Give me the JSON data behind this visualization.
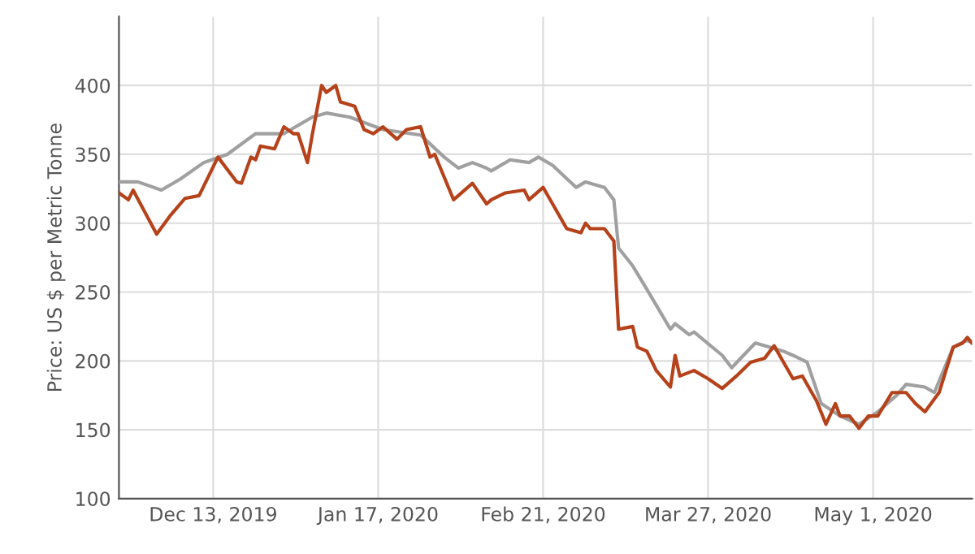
{
  "chart_data": {
    "type": "line",
    "ylabel": "Price: US $ per Metric Tonne",
    "xlim": [
      "2019-11-23",
      "2020-05-22"
    ],
    "xticks": [
      {
        "value": "2019-12-13",
        "label": "Dec 13, 2019"
      },
      {
        "value": "2020-01-17",
        "label": "Jan 17, 2020"
      },
      {
        "value": "2020-02-21",
        "label": "Feb 21, 2020"
      },
      {
        "value": "2020-03-27",
        "label": "Mar 27, 2020"
      },
      {
        "value": "2020-05-01",
        "label": "May 1, 2020"
      }
    ],
    "ylim": [
      100,
      450
    ],
    "yticks": [
      100,
      150,
      200,
      250,
      300,
      350,
      400
    ],
    "grid": true,
    "legend": false,
    "series": [
      {
        "color": "#a0a0a0",
        "x": [
          "2019-11-23",
          "2019-11-27",
          "2019-12-02",
          "2019-12-06",
          "2019-12-11",
          "2019-12-16",
          "2019-12-22",
          "2019-12-28",
          "2020-01-03",
          "2020-01-06",
          "2020-01-11",
          "2020-01-18",
          "2020-01-26",
          "2020-01-31",
          "2020-02-03",
          "2020-02-06",
          "2020-02-09",
          "2020-02-10",
          "2020-02-14",
          "2020-02-18",
          "2020-02-20",
          "2020-02-23",
          "2020-02-28",
          "2020-03-01",
          "2020-03-05",
          "2020-03-07",
          "2020-03-08",
          "2020-03-11",
          "2020-03-14",
          "2020-03-19",
          "2020-03-20",
          "2020-03-23",
          "2020-03-24",
          "2020-03-30",
          "2020-04-01",
          "2020-04-06",
          "2020-04-09",
          "2020-04-12",
          "2020-04-14",
          "2020-04-17",
          "2020-04-20",
          "2020-04-24",
          "2020-04-28",
          "2020-05-02",
          "2020-05-06",
          "2020-05-08",
          "2020-05-12",
          "2020-05-14",
          "2020-05-18",
          "2020-05-21",
          "2020-05-22"
        ],
        "values": [
          330,
          330,
          324,
          332,
          344,
          350,
          365,
          365,
          377,
          380,
          377,
          368,
          364,
          348,
          340,
          344,
          340,
          338,
          346,
          344,
          348,
          342,
          326,
          330,
          326,
          317,
          282,
          269,
          252,
          223,
          227,
          219,
          221,
          204,
          195,
          213,
          210,
          207,
          204,
          199,
          169,
          160,
          154,
          163,
          175,
          183,
          181,
          177,
          210,
          215,
          213
        ]
      },
      {
        "color": "#b5421a",
        "x": [
          "2019-11-23",
          "2019-11-25",
          "2019-11-26",
          "2019-12-01",
          "2019-12-04",
          "2019-12-05",
          "2019-12-07",
          "2019-12-10",
          "2019-12-14",
          "2019-12-18",
          "2019-12-19",
          "2019-12-21",
          "2019-12-22",
          "2019-12-23",
          "2019-12-26",
          "2019-12-28",
          "2019-12-30",
          "2019-12-31",
          "2020-01-02",
          "2020-01-03",
          "2020-01-05",
          "2020-01-06",
          "2020-01-08",
          "2020-01-09",
          "2020-01-12",
          "2020-01-14",
          "2020-01-16",
          "2020-01-18",
          "2020-01-21",
          "2020-01-23",
          "2020-01-26",
          "2020-01-28",
          "2020-01-29",
          "2020-02-02",
          "2020-02-06",
          "2020-02-09",
          "2020-02-10",
          "2020-02-13",
          "2020-02-17",
          "2020-02-18",
          "2020-02-21",
          "2020-02-23",
          "2020-02-26",
          "2020-02-29",
          "2020-03-01",
          "2020-03-02",
          "2020-03-05",
          "2020-03-07",
          "2020-03-08",
          "2020-03-11",
          "2020-03-12",
          "2020-03-14",
          "2020-03-16",
          "2020-03-19",
          "2020-03-20",
          "2020-03-21",
          "2020-03-24",
          "2020-03-27",
          "2020-03-30",
          "2020-04-02",
          "2020-04-05",
          "2020-04-08",
          "2020-04-10",
          "2020-04-12",
          "2020-04-14",
          "2020-04-16",
          "2020-04-19",
          "2020-04-21",
          "2020-04-23",
          "2020-04-24",
          "2020-04-26",
          "2020-04-28",
          "2020-04-30",
          "2020-05-02",
          "2020-05-05",
          "2020-05-08",
          "2020-05-10",
          "2020-05-12",
          "2020-05-15",
          "2020-05-18",
          "2020-05-20",
          "2020-05-21",
          "2020-05-22"
        ],
        "values": [
          322,
          317,
          324,
          292,
          306,
          310,
          318,
          320,
          348,
          330,
          329,
          348,
          346,
          356,
          354,
          370,
          365,
          365,
          344,
          364,
          400,
          395,
          400,
          388,
          385,
          368,
          365,
          370,
          361,
          368,
          370,
          348,
          350,
          317,
          329,
          314,
          317,
          322,
          324,
          317,
          326,
          314,
          296,
          293,
          300,
          296,
          296,
          287,
          223,
          225,
          210,
          207,
          193,
          181,
          204,
          189,
          193,
          187,
          180,
          189,
          199,
          202,
          211,
          199,
          187,
          189,
          171,
          154,
          169,
          160,
          160,
          151,
          160,
          160,
          177,
          177,
          169,
          163,
          177,
          210,
          213,
          217,
          213
        ]
      }
    ]
  }
}
